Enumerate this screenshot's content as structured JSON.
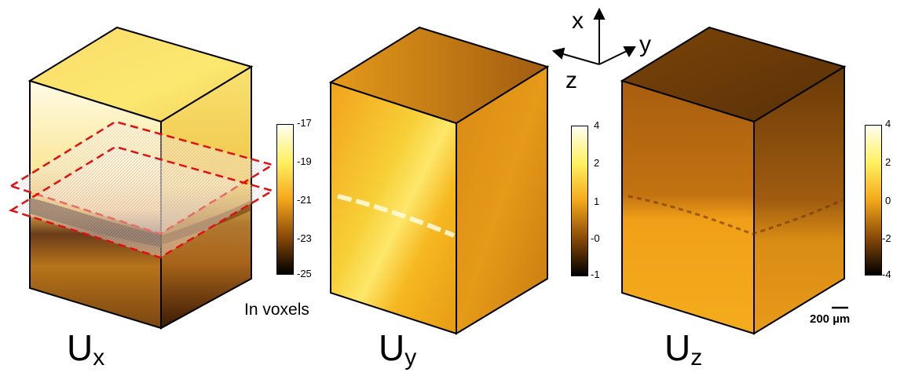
{
  "panels": [
    {
      "label_main": "U",
      "label_sub": "x",
      "colorbar_ticks": [
        "-17",
        "-19",
        "-21",
        "-23",
        "-25"
      ]
    },
    {
      "label_main": "U",
      "label_sub": "y",
      "colorbar_ticks": [
        "4",
        "2",
        "1",
        "-0",
        "-1"
      ]
    },
    {
      "label_main": "U",
      "label_sub": "z",
      "colorbar_ticks": [
        "4",
        "2",
        "0",
        "-2",
        "-4"
      ]
    }
  ],
  "units_label": "In voxels",
  "axes": {
    "x": "x",
    "y": "y",
    "z": "z"
  },
  "scale_bar": {
    "label": "200 µm"
  },
  "colors": {
    "hot_light": "#fffbe0",
    "hot_bright": "#ffe94a",
    "hot_mid": "#f0a010",
    "hot_dark": "#7a3c06",
    "hot_black": "#000000",
    "section_outline": "#e01010"
  }
}
